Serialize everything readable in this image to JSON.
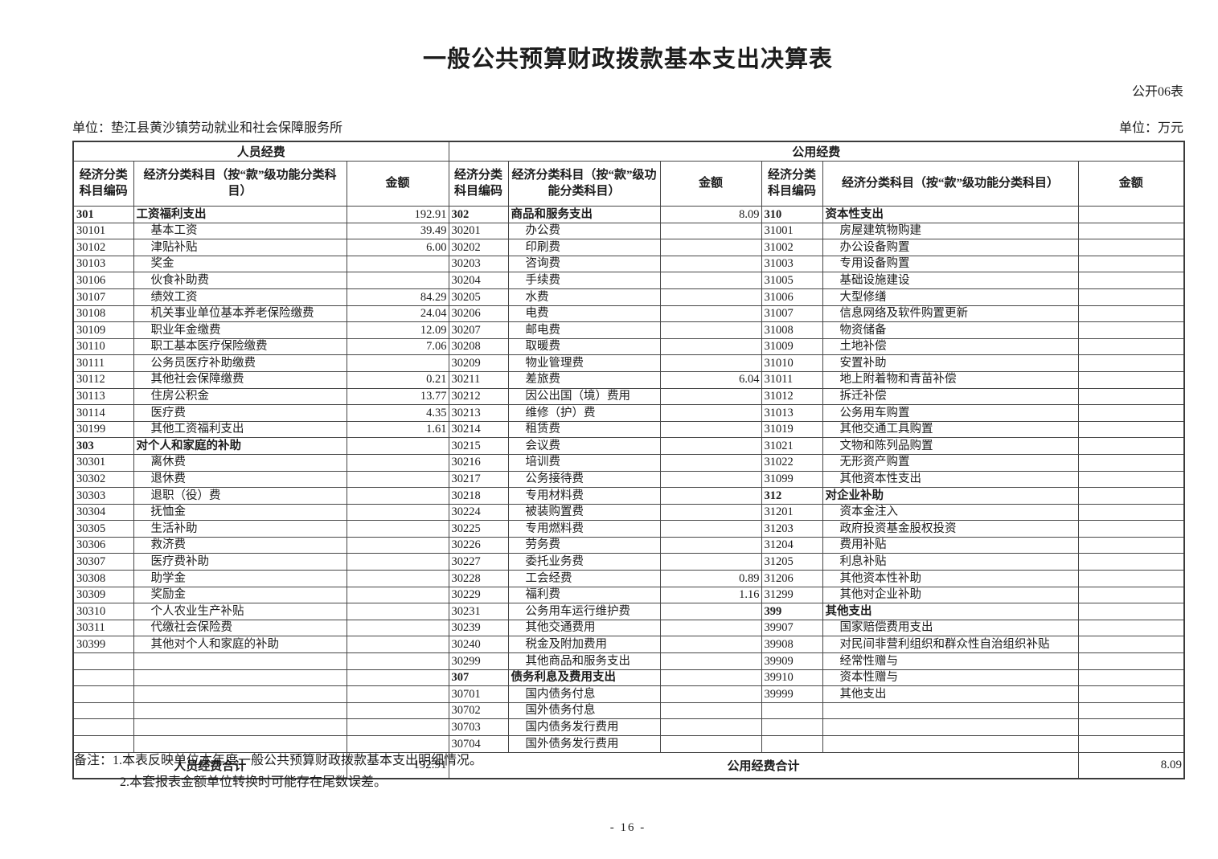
{
  "page": {
    "title": "一般公共预算财政拨款基本支出决算表",
    "table_code": "公开06表",
    "org_unit": "单位：垫江县黄沙镇劳动就业和社会保障服务所",
    "money_unit": "单位：万元",
    "notes_label": "备注：",
    "notes": [
      "1.本表反映单位本年度一般公共预算财政拨款基本支出明细情况。",
      "2.本套报表金额单位转换时可能存在尾数误差。"
    ],
    "page_number": "- 16 -"
  },
  "table": {
    "group_headers": {
      "personnel": "人员经费",
      "public": "公用经费"
    },
    "col_headers": {
      "code": "经济分类科目编码",
      "subject": "经济分类科目（按“款”级功能分类科目）",
      "amount": "金额"
    },
    "rows": [
      [
        [
          "301",
          "工资福利支出",
          "192.91",
          1
        ],
        [
          "302",
          "商品和服务支出",
          "8.09",
          1
        ],
        [
          "310",
          "资本性支出",
          "",
          1
        ]
      ],
      [
        [
          "30101",
          "基本工资",
          "39.49",
          0
        ],
        [
          "30201",
          "办公费",
          "",
          0
        ],
        [
          "31001",
          "房屋建筑物购建",
          "",
          0
        ]
      ],
      [
        [
          "30102",
          "津贴补贴",
          "6.00",
          0
        ],
        [
          "30202",
          "印刷费",
          "",
          0
        ],
        [
          "31002",
          "办公设备购置",
          "",
          0
        ]
      ],
      [
        [
          "30103",
          "奖金",
          "",
          0
        ],
        [
          "30203",
          "咨询费",
          "",
          0
        ],
        [
          "31003",
          "专用设备购置",
          "",
          0
        ]
      ],
      [
        [
          "30106",
          "伙食补助费",
          "",
          0
        ],
        [
          "30204",
          "手续费",
          "",
          0
        ],
        [
          "31005",
          "基础设施建设",
          "",
          0
        ]
      ],
      [
        [
          "30107",
          "绩效工资",
          "84.29",
          0
        ],
        [
          "30205",
          "水费",
          "",
          0
        ],
        [
          "31006",
          "大型修缮",
          "",
          0
        ]
      ],
      [
        [
          "30108",
          "机关事业单位基本养老保险缴费",
          "24.04",
          0
        ],
        [
          "30206",
          "电费",
          "",
          0
        ],
        [
          "31007",
          "信息网络及软件购置更新",
          "",
          0
        ]
      ],
      [
        [
          "30109",
          "职业年金缴费",
          "12.09",
          0
        ],
        [
          "30207",
          "邮电费",
          "",
          0
        ],
        [
          "31008",
          "物资储备",
          "",
          0
        ]
      ],
      [
        [
          "30110",
          "职工基本医疗保险缴费",
          "7.06",
          0
        ],
        [
          "30208",
          "取暖费",
          "",
          0
        ],
        [
          "31009",
          "土地补偿",
          "",
          0
        ]
      ],
      [
        [
          "30111",
          "公务员医疗补助缴费",
          "",
          0
        ],
        [
          "30209",
          "物业管理费",
          "",
          0
        ],
        [
          "31010",
          "安置补助",
          "",
          0
        ]
      ],
      [
        [
          "30112",
          "其他社会保障缴费",
          "0.21",
          0
        ],
        [
          "30211",
          "差旅费",
          "6.04",
          0
        ],
        [
          "31011",
          "地上附着物和青苗补偿",
          "",
          0
        ]
      ],
      [
        [
          "30113",
          "住房公积金",
          "13.77",
          0
        ],
        [
          "30212",
          "因公出国（境）费用",
          "",
          0
        ],
        [
          "31012",
          "拆迁补偿",
          "",
          0
        ]
      ],
      [
        [
          "30114",
          "医疗费",
          "4.35",
          0
        ],
        [
          "30213",
          "维修（护）费",
          "",
          0
        ],
        [
          "31013",
          "公务用车购置",
          "",
          0
        ]
      ],
      [
        [
          "30199",
          "其他工资福利支出",
          "1.61",
          0
        ],
        [
          "30214",
          "租赁费",
          "",
          0
        ],
        [
          "31019",
          "其他交通工具购置",
          "",
          0
        ]
      ],
      [
        [
          "303",
          "对个人和家庭的补助",
          "",
          1
        ],
        [
          "30215",
          "会议费",
          "",
          0
        ],
        [
          "31021",
          "文物和陈列品购置",
          "",
          0
        ]
      ],
      [
        [
          "30301",
          "离休费",
          "",
          0
        ],
        [
          "30216",
          "培训费",
          "",
          0
        ],
        [
          "31022",
          "无形资产购置",
          "",
          0
        ]
      ],
      [
        [
          "30302",
          "退休费",
          "",
          0
        ],
        [
          "30217",
          "公务接待费",
          "",
          0
        ],
        [
          "31099",
          "其他资本性支出",
          "",
          0
        ]
      ],
      [
        [
          "30303",
          "退职（役）费",
          "",
          0
        ],
        [
          "30218",
          "专用材料费",
          "",
          0
        ],
        [
          "312",
          "对企业补助",
          "",
          1
        ]
      ],
      [
        [
          "30304",
          "抚恤金",
          "",
          0
        ],
        [
          "30224",
          "被装购置费",
          "",
          0
        ],
        [
          "31201",
          "资本金注入",
          "",
          0
        ]
      ],
      [
        [
          "30305",
          "生活补助",
          "",
          0
        ],
        [
          "30225",
          "专用燃料费",
          "",
          0
        ],
        [
          "31203",
          "政府投资基金股权投资",
          "",
          0
        ]
      ],
      [
        [
          "30306",
          "救济费",
          "",
          0
        ],
        [
          "30226",
          "劳务费",
          "",
          0
        ],
        [
          "31204",
          "费用补贴",
          "",
          0
        ]
      ],
      [
        [
          "30307",
          "医疗费补助",
          "",
          0
        ],
        [
          "30227",
          "委托业务费",
          "",
          0
        ],
        [
          "31205",
          "利息补贴",
          "",
          0
        ]
      ],
      [
        [
          "30308",
          "助学金",
          "",
          0
        ],
        [
          "30228",
          "工会经费",
          "0.89",
          0
        ],
        [
          "31206",
          "其他资本性补助",
          "",
          0
        ]
      ],
      [
        [
          "30309",
          "奖励金",
          "",
          0
        ],
        [
          "30229",
          "福利费",
          "1.16",
          0
        ],
        [
          "31299",
          "其他对企业补助",
          "",
          0
        ]
      ],
      [
        [
          "30310",
          "个人农业生产补贴",
          "",
          0
        ],
        [
          "30231",
          "公务用车运行维护费",
          "",
          0
        ],
        [
          "399",
          "其他支出",
          "",
          1
        ]
      ],
      [
        [
          "30311",
          "代缴社会保险费",
          "",
          0
        ],
        [
          "30239",
          "其他交通费用",
          "",
          0
        ],
        [
          "39907",
          "国家赔偿费用支出",
          "",
          0
        ]
      ],
      [
        [
          "30399",
          "其他对个人和家庭的补助",
          "",
          0
        ],
        [
          "30240",
          "税金及附加费用",
          "",
          0
        ],
        [
          "39908",
          "对民间非营利组织和群众性自治组织补贴",
          "",
          0
        ]
      ],
      [
        [
          "",
          "",
          "",
          0
        ],
        [
          "30299",
          "其他商品和服务支出",
          "",
          0
        ],
        [
          "39909",
          "经常性赠与",
          "",
          0
        ]
      ],
      [
        [
          "",
          "",
          "",
          0
        ],
        [
          "307",
          "债务利息及费用支出",
          "",
          1
        ],
        [
          "39910",
          "资本性赠与",
          "",
          0
        ]
      ],
      [
        [
          "",
          "",
          "",
          0
        ],
        [
          "30701",
          "国内债务付息",
          "",
          0
        ],
        [
          "39999",
          "其他支出",
          "",
          0
        ]
      ],
      [
        [
          "",
          "",
          "",
          0
        ],
        [
          "30702",
          "国外债务付息",
          "",
          0
        ],
        [
          "",
          "",
          "",
          0
        ]
      ],
      [
        [
          "",
          "",
          "",
          0
        ],
        [
          "30703",
          "国内债务发行费用",
          "",
          0
        ],
        [
          "",
          "",
          "",
          0
        ]
      ],
      [
        [
          "",
          "",
          "",
          0
        ],
        [
          "30704",
          "国外债务发行费用",
          "",
          0
        ],
        [
          "",
          "",
          "",
          0
        ]
      ]
    ],
    "footer": {
      "personnel_total_label": "人员经费合计",
      "personnel_total_amount": "192.91",
      "public_total_label": "公用经费合计",
      "public_total_amount": "8.09"
    }
  }
}
